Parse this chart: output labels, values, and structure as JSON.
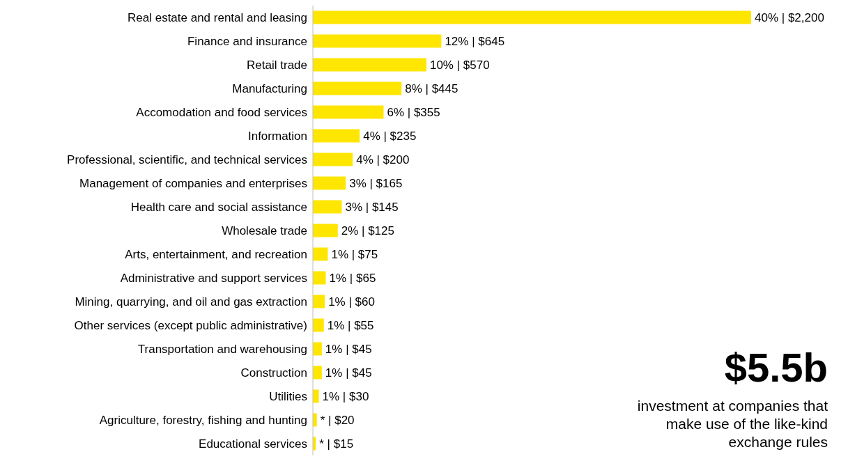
{
  "chart_data": {
    "type": "bar",
    "orientation": "horizontal",
    "tick_labels": "y",
    "categories": [
      "Real estate and rental and leasing",
      "Finance and insurance",
      "Retail trade",
      "Manufacturing",
      "Accomodation and food services",
      "Information",
      "Professional, scientific, and technical services",
      "Management of companies and enterprises",
      "Health care and social assistance",
      "Wholesale trade",
      "Arts, entertainment, and recreation",
      "Administrative and support services",
      "Mining, quarrying, and oil and gas extraction",
      "Other services (except public administrative)",
      "Transportation and warehousing",
      "Construction",
      "Utilities",
      "Agriculture, forestry, fishing and hunting",
      "Educational services"
    ],
    "series": [
      {
        "color": "#ffe600",
        "values": [
          2200,
          645,
          570,
          445,
          355,
          235,
          200,
          165,
          145,
          125,
          75,
          65,
          60,
          55,
          45,
          45,
          30,
          20,
          15
        ],
        "value_labels": [
          "40% | $2,200",
          "12% | $645",
          "10% | $570",
          "8% | $445",
          "6% | $355",
          "4% | $235",
          "4% | $200",
          "3% | $165",
          "3% | $145",
          "2% | $125",
          "1% | $75",
          "1% | $65",
          "1% | $60",
          "1% | $55",
          "1% | $45",
          "1% | $45",
          "1% | $30",
          "* | $20",
          "* | $15"
        ]
      }
    ],
    "annotations": [
      "$5.5b",
      "investment at companies that make use of the like-kind exchange rules"
    ]
  }
}
